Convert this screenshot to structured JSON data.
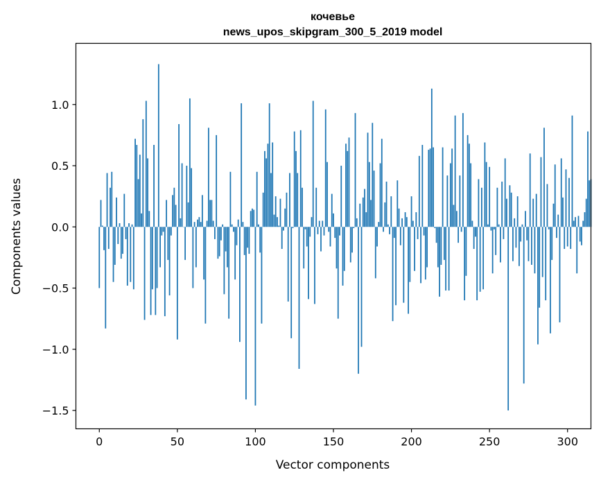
{
  "chart_data": {
    "type": "bar",
    "title": "кочевье",
    "subtitle": "news_upos_skipgram_300_5_2019 model",
    "xlabel": "Vector components",
    "ylabel": "Components values",
    "xlim": [
      -15,
      315
    ],
    "ylim": [
      -1.65,
      1.5
    ],
    "xticks": [
      0,
      50,
      100,
      150,
      200,
      250,
      300
    ],
    "xtick_labels": [
      "0",
      "50",
      "100",
      "150",
      "200",
      "250",
      "300"
    ],
    "yticks": [
      -1.5,
      -1.0,
      -0.5,
      0.0,
      0.5,
      1.0
    ],
    "ytick_labels": [
      "−1.5",
      "−1.0",
      "−0.5",
      "0.0",
      "0.5",
      "1.0"
    ],
    "grid": false,
    "bar_color": "#1f77b4",
    "values": [
      -0.5,
      0.22,
      0.01,
      -0.19,
      -0.83,
      0.44,
      -0.18,
      0.32,
      0.45,
      -0.45,
      -0.31,
      0.24,
      -0.14,
      0.03,
      -0.26,
      -0.22,
      0.27,
      -0.1,
      -0.48,
      0.03,
      -0.45,
      0.02,
      -0.51,
      0.72,
      0.67,
      0.39,
      0.59,
      0.11,
      0.88,
      -0.76,
      1.03,
      0.56,
      0.13,
      -0.72,
      -0.51,
      0.67,
      -0.72,
      -0.5,
      1.33,
      -0.33,
      -0.07,
      -0.04,
      -0.73,
      0.22,
      -0.27,
      -0.56,
      -0.07,
      0.26,
      0.32,
      0.18,
      -0.92,
      0.84,
      0.07,
      0.52,
      0.0,
      -0.27,
      0.5,
      0.2,
      1.05,
      0.48,
      -0.5,
      0.04,
      -0.33,
      0.06,
      0.08,
      0.04,
      0.26,
      -0.43,
      -0.79,
      0.05,
      0.81,
      0.22,
      0.22,
      0.05,
      -0.1,
      0.75,
      -0.26,
      -0.24,
      -0.11,
      0.02,
      -0.55,
      -0.2,
      -0.33,
      -0.75,
      0.45,
      0.02,
      -0.04,
      -0.43,
      -0.15,
      0.06,
      -0.94,
      1.01,
      0.04,
      -0.23,
      -1.41,
      -0.17,
      -0.22,
      0.13,
      0.15,
      0.14,
      -1.46,
      0.45,
      0.02,
      -0.21,
      -0.79,
      0.28,
      0.62,
      0.56,
      0.68,
      1.01,
      0.44,
      0.69,
      0.1,
      0.25,
      0.08,
      0.01,
      0.23,
      -0.18,
      -0.03,
      0.15,
      0.28,
      -0.61,
      0.44,
      -0.91,
      -0.01,
      0.78,
      0.62,
      0.44,
      -1.16,
      0.79,
      0.32,
      -0.34,
      -0.02,
      -0.16,
      -0.59,
      -0.08,
      0.08,
      1.03,
      -0.63,
      0.32,
      -0.06,
      0.05,
      -0.2,
      0.05,
      -0.07,
      0.96,
      0.53,
      -0.04,
      -0.16,
      0.27,
      0.11,
      -0.09,
      -0.34,
      -0.75,
      -0.07,
      0.5,
      -0.48,
      -0.36,
      0.68,
      0.62,
      0.73,
      -0.29,
      -0.21,
      -0.01,
      0.93,
      0.07,
      -1.2,
      0.19,
      -0.98,
      0.24,
      0.31,
      0.12,
      0.77,
      0.53,
      0.22,
      0.85,
      0.46,
      -0.42,
      -0.16,
      0.04,
      0.52,
      0.72,
      -0.04,
      0.2,
      0.37,
      0.02,
      -0.06,
      0.25,
      -0.77,
      -0.09,
      -0.64,
      0.38,
      0.15,
      -0.15,
      0.07,
      -0.62,
      0.12,
      0.08,
      -0.71,
      -0.45,
      0.25,
      0.05,
      -0.36,
      0.12,
      -0.1,
      0.58,
      -0.46,
      0.67,
      -0.07,
      -0.43,
      -0.33,
      0.63,
      0.64,
      1.13,
      0.65,
      -0.01,
      -0.13,
      -0.33,
      -0.57,
      -0.31,
      0.65,
      -0.27,
      -0.52,
      0.42,
      -0.52,
      0.52,
      0.64,
      0.18,
      0.91,
      0.13,
      -0.13,
      0.42,
      -0.04,
      0.93,
      -0.6,
      -0.4,
      0.75,
      0.68,
      0.52,
      0.05,
      -0.18,
      -0.08,
      -0.6,
      0.39,
      -0.53,
      0.32,
      -0.51,
      0.69,
      0.53,
      0.02,
      0.49,
      -0.03,
      -0.38,
      -0.02,
      -0.23,
      0.32,
      0.02,
      -0.29,
      0.37,
      -0.1,
      0.56,
      0.23,
      -1.5,
      0.34,
      0.28,
      -0.28,
      0.07,
      -0.17,
      0.25,
      -0.32,
      -0.12,
      0.02,
      -1.28,
      0.13,
      -0.11,
      -0.28,
      0.6,
      -0.31,
      0.23,
      -0.38,
      0.27,
      -0.96,
      -0.66,
      0.57,
      -0.41,
      0.81,
      -0.6,
      0.35,
      -0.02,
      -0.87,
      -0.27,
      0.19,
      0.51,
      -0.09,
      0.1,
      -0.78,
      0.56,
      0.24,
      -0.18,
      0.47,
      -0.16,
      0.4,
      -0.18,
      0.91,
      0.05,
      0.08,
      -0.38,
      0.09,
      -0.12,
      -0.15,
      0.05,
      0.12,
      0.23,
      0.78,
      0.38,
      0.39
    ]
  }
}
